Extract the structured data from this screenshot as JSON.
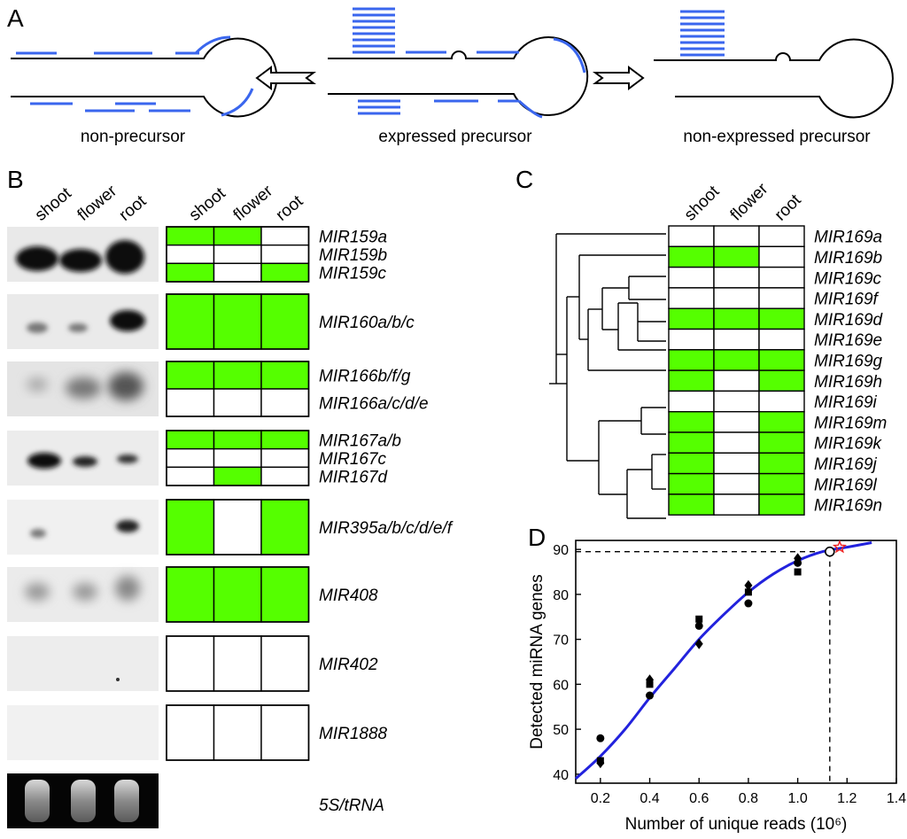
{
  "panels": {
    "a": {
      "letter": "A",
      "captions": [
        "non-precursor",
        "expressed precursor",
        "non-expressed precursor"
      ]
    },
    "b": {
      "letter": "B",
      "blot_columns": [
        "shoot",
        "flower",
        "root"
      ],
      "grid_columns": [
        "shoot",
        "flower",
        "root"
      ],
      "groups": [
        {
          "genes": [
            "MIR159a",
            "MIR159b",
            "MIR159c"
          ],
          "expression": [
            [
              1,
              1,
              0
            ],
            [
              0,
              0,
              0
            ],
            [
              1,
              0,
              1
            ]
          ]
        },
        {
          "genes": [
            "MIR160a/b/c"
          ],
          "expression": [
            [
              1,
              1,
              1
            ]
          ]
        },
        {
          "genes": [
            "MIR166b/f/g",
            "MIR166a/c/d/e"
          ],
          "expression": [
            [
              1,
              1,
              1
            ],
            [
              0,
              0,
              0
            ]
          ]
        },
        {
          "genes": [
            "MIR167a/b",
            "MIR167c",
            "MIR167d"
          ],
          "expression": [
            [
              1,
              1,
              1
            ],
            [
              0,
              0,
              0
            ],
            [
              0,
              1,
              0
            ]
          ]
        },
        {
          "genes": [
            "MIR395a/b/c/d/e/f"
          ],
          "expression": [
            [
              1,
              0,
              1
            ]
          ]
        },
        {
          "genes": [
            "MIR408"
          ],
          "expression": [
            [
              1,
              1,
              1
            ]
          ]
        },
        {
          "genes": [
            "MIR402"
          ],
          "expression": [
            [
              0,
              0,
              0
            ]
          ]
        },
        {
          "genes": [
            "MIR1888"
          ],
          "expression": [
            [
              0,
              0,
              0
            ]
          ]
        }
      ],
      "loading_control": "5S/tRNA"
    },
    "c": {
      "letter": "C",
      "columns": [
        "shoot",
        "flower",
        "root"
      ],
      "genes": [
        "MIR169a",
        "MIR169b",
        "MIR169c",
        "MIR169f",
        "MIR169d",
        "MIR169e",
        "MIR169g",
        "MIR169h",
        "MIR169i",
        "MIR169m",
        "MIR169k",
        "MIR169j",
        "MIR169l",
        "MIR169n"
      ],
      "expression": [
        [
          0,
          0,
          0
        ],
        [
          1,
          1,
          0
        ],
        [
          0,
          0,
          0
        ],
        [
          0,
          0,
          0
        ],
        [
          1,
          1,
          1
        ],
        [
          0,
          0,
          0
        ],
        [
          1,
          1,
          1
        ],
        [
          1,
          0,
          1
        ],
        [
          0,
          0,
          0
        ],
        [
          1,
          0,
          1
        ],
        [
          1,
          0,
          1
        ],
        [
          1,
          0,
          1
        ],
        [
          1,
          0,
          1
        ],
        [
          1,
          0,
          1
        ]
      ]
    },
    "d": {
      "letter": "D"
    }
  },
  "colors": {
    "expressed": "#55ff00",
    "precursor_line": "#000000",
    "read": "#3366ee",
    "fit": "#2222dd",
    "star": "#ee2222"
  },
  "chart_data": {
    "type": "scatter",
    "xlabel": "Number of unique reads (10⁶)",
    "ylabel": "Detected miRNA genes",
    "xlim": [
      0.1,
      1.4
    ],
    "ylim": [
      38,
      92
    ],
    "x_ticks": [
      "0.2",
      "0.4",
      "0.6",
      "0.8",
      "1.0",
      "1.2",
      "1.4"
    ],
    "y_ticks": [
      "40",
      "50",
      "60",
      "70",
      "80",
      "90"
    ],
    "series": [
      {
        "marker": "circle",
        "points": [
          [
            0.2,
            48
          ],
          [
            0.4,
            57.5
          ],
          [
            0.6,
            73
          ],
          [
            0.8,
            78
          ],
          [
            1.0,
            87
          ]
        ]
      },
      {
        "marker": "square",
        "points": [
          [
            0.2,
            43
          ],
          [
            0.4,
            60
          ],
          [
            0.6,
            74.5
          ],
          [
            0.8,
            80.5
          ],
          [
            1.0,
            85
          ]
        ]
      },
      {
        "marker": "diamond",
        "points": [
          [
            0.2,
            42.5
          ],
          [
            0.4,
            61
          ],
          [
            0.6,
            69
          ],
          [
            0.8,
            82
          ],
          [
            1.0,
            88
          ]
        ]
      }
    ],
    "fit_curve": [
      [
        0.1,
        39
      ],
      [
        0.2,
        44
      ],
      [
        0.3,
        50
      ],
      [
        0.4,
        57
      ],
      [
        0.5,
        63.5
      ],
      [
        0.6,
        70
      ],
      [
        0.7,
        75.5
      ],
      [
        0.8,
        80.5
      ],
      [
        0.9,
        84.5
      ],
      [
        1.0,
        87.5
      ],
      [
        1.1,
        89.5
      ],
      [
        1.2,
        90.5
      ],
      [
        1.3,
        91.5
      ]
    ],
    "highlight": {
      "open_circle": [
        1.13,
        89.5
      ],
      "star": [
        1.17,
        90.5
      ]
    },
    "reference": {
      "x": 1.13,
      "y": 89.5
    },
    "grid": false,
    "legend": "none"
  }
}
